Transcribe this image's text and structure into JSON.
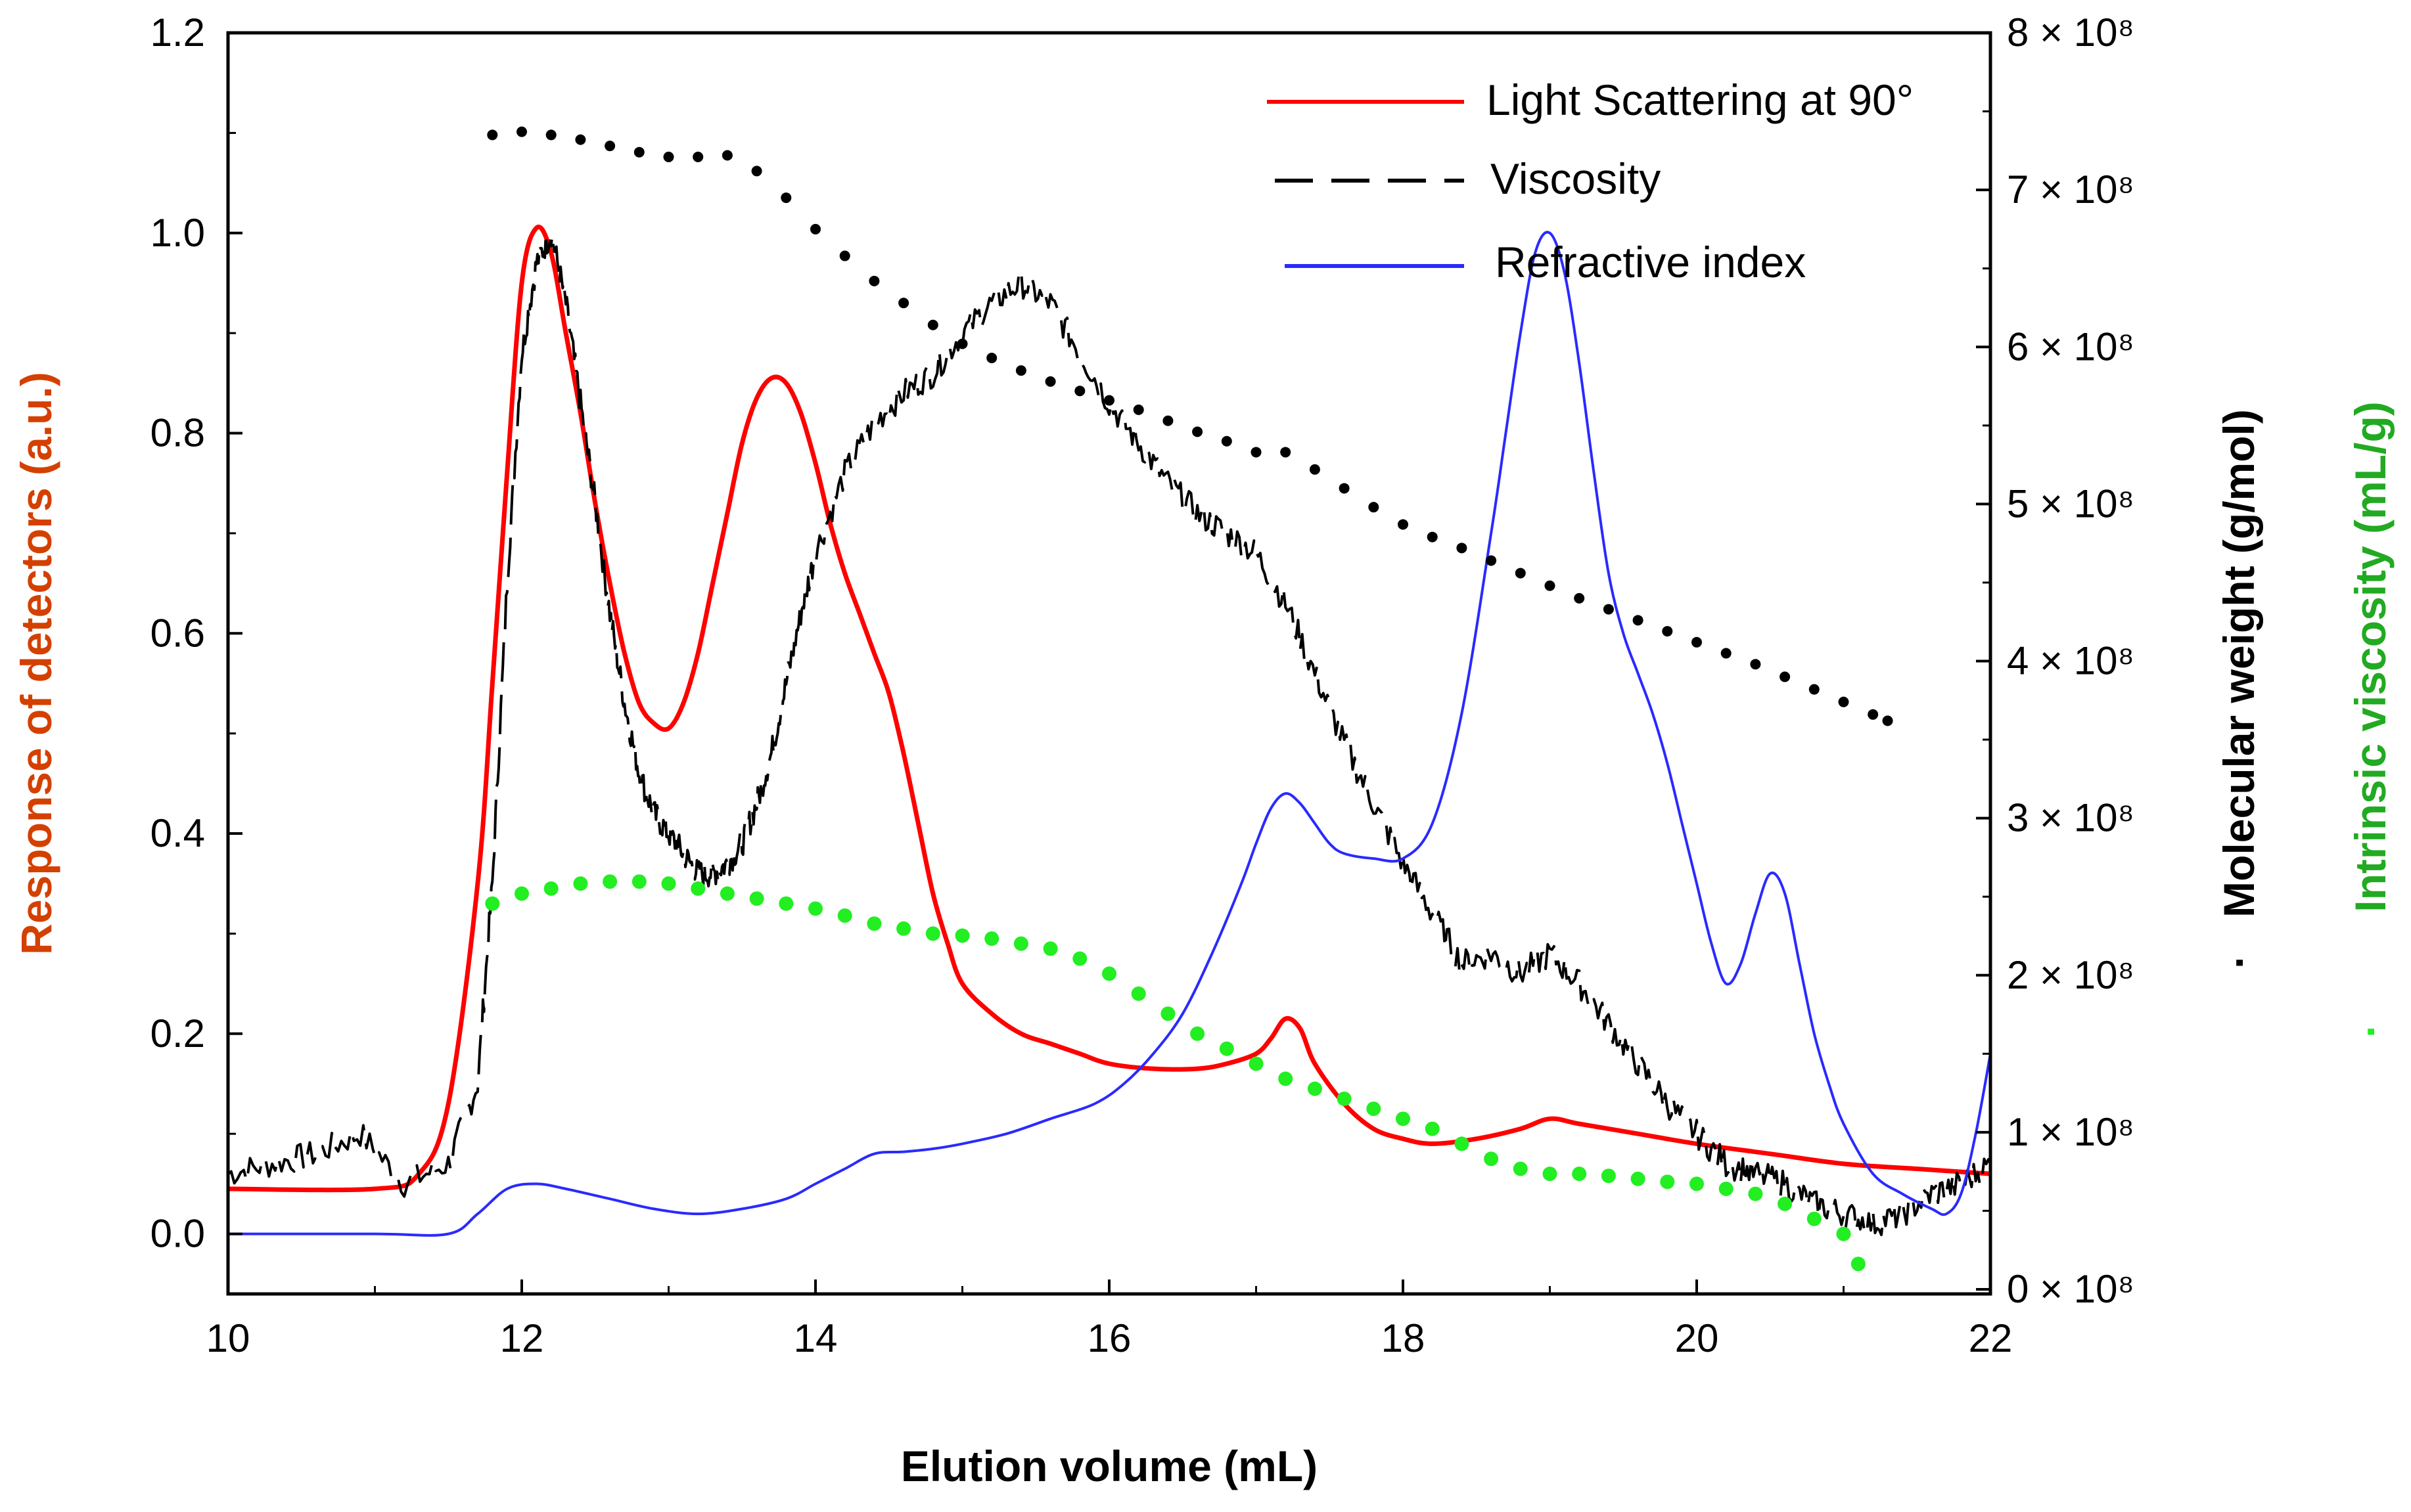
{
  "chart_data": {
    "type": "line",
    "title": "",
    "xlabel": "Elution volume (mL)",
    "ylabel_left": "Response of detectors (a.u.)",
    "ylabel_right_1": "Molecular weight (g/mol)",
    "ylabel_right_1_marker": "·",
    "ylabel_right_2": "Intrinsic viscosity (mL/g)",
    "ylabel_right_2_marker": "·",
    "xlim": [
      10,
      22
    ],
    "ylim_left": [
      -0.06,
      1.2
    ],
    "ylim_right": [
      0,
      8
    ],
    "x_ticks": [
      "10",
      "12",
      "14",
      "16",
      "18",
      "20",
      "22"
    ],
    "x_tick_values": [
      10,
      12,
      14,
      16,
      18,
      20,
      22
    ],
    "y_left_ticks": [
      "0.0",
      "0.2",
      "0.4",
      "0.6",
      "0.8",
      "1.0",
      "1.2"
    ],
    "y_left_tick_values": [
      0,
      0.2,
      0.4,
      0.6,
      0.8,
      1.0,
      1.2
    ],
    "y_right_ticks": [
      "0 × 10⁸",
      "1 × 10⁸",
      "2 × 10⁸",
      "3 × 10⁸",
      "4 × 10⁸",
      "5 × 10⁸",
      "6 × 10⁸",
      "7 × 10⁸",
      "8 × 10⁸"
    ],
    "y_right_tick_values": [
      0,
      1,
      2,
      3,
      4,
      5,
      6,
      7,
      8
    ],
    "legend_position": "top-right",
    "colors": {
      "light_scattering": "#ff0000",
      "viscosity": "#000000",
      "refractive_index": "#2a2aff",
      "molecular_weight": "#000000",
      "intrinsic_viscosity": "#22ee22"
    },
    "legend": [
      {
        "label": "Light Scattering at 90°",
        "style": "solid",
        "color": "#ff0000"
      },
      {
        "label": "Viscosity",
        "style": "dashed",
        "color": "#000000"
      },
      {
        "label": "Refractive index",
        "style": "solid",
        "color": "#2a2aff"
      }
    ],
    "series": [
      {
        "name": "Light Scattering at 90°",
        "axis": "left",
        "style": "solid",
        "x": [
          10.0,
          11.0,
          11.3,
          11.5,
          11.7,
          11.8,
          11.9,
          12.0,
          12.1,
          12.2,
          12.3,
          12.4,
          12.5,
          12.6,
          12.7,
          12.8,
          12.9,
          13.0,
          13.1,
          13.2,
          13.3,
          13.4,
          13.5,
          13.6,
          13.7,
          13.8,
          13.9,
          14.0,
          14.1,
          14.2,
          14.3,
          14.4,
          14.5,
          14.6,
          14.7,
          14.8,
          14.9,
          15.0,
          15.2,
          15.4,
          15.6,
          15.8,
          16.0,
          16.3,
          16.6,
          16.8,
          17.0,
          17.1,
          17.2,
          17.3,
          17.4,
          17.6,
          17.8,
          18.0,
          18.2,
          18.5,
          18.8,
          19.0,
          19.2,
          19.6,
          20.0,
          20.5,
          21.0,
          21.5,
          22.0
        ],
        "y": [
          0.045,
          0.045,
          0.06,
          0.13,
          0.35,
          0.55,
          0.76,
          0.95,
          1.005,
          0.98,
          0.9,
          0.82,
          0.73,
          0.65,
          0.58,
          0.53,
          0.51,
          0.505,
          0.53,
          0.58,
          0.65,
          0.72,
          0.79,
          0.835,
          0.855,
          0.85,
          0.82,
          0.77,
          0.71,
          0.66,
          0.62,
          0.58,
          0.54,
          0.48,
          0.41,
          0.34,
          0.29,
          0.25,
          0.22,
          0.2,
          0.19,
          0.18,
          0.17,
          0.165,
          0.165,
          0.17,
          0.18,
          0.195,
          0.215,
          0.205,
          0.17,
          0.13,
          0.105,
          0.095,
          0.09,
          0.095,
          0.105,
          0.115,
          0.11,
          0.1,
          0.09,
          0.08,
          0.07,
          0.065,
          0.06
        ]
      },
      {
        "name": "Viscosity",
        "axis": "left",
        "style": "dashed",
        "x": [
          10.0,
          10.3,
          10.6,
          10.9,
          11.2,
          11.5,
          11.7,
          11.8,
          11.9,
          12.0,
          12.1,
          12.2,
          12.3,
          12.4,
          12.5,
          12.6,
          12.7,
          12.8,
          12.9,
          13.0,
          13.1,
          13.2,
          13.3,
          13.4,
          13.5,
          13.6,
          13.7,
          13.8,
          13.9,
          14.0,
          14.2,
          14.4,
          14.6,
          14.8,
          15.0,
          15.2,
          15.4,
          15.6,
          15.8,
          16.0,
          16.2,
          16.4,
          16.6,
          16.8,
          17.0,
          17.2,
          17.4,
          17.6,
          17.8,
          18.0,
          18.2,
          18.4,
          18.6,
          18.8,
          19.0,
          19.2,
          19.4,
          19.6,
          19.8,
          20.0,
          20.2,
          20.4,
          20.6,
          20.8,
          21.0,
          21.2,
          21.4,
          21.6,
          21.8,
          22.0
        ],
        "y": [
          0.06,
          0.07,
          0.08,
          0.1,
          0.05,
          0.07,
          0.15,
          0.35,
          0.65,
          0.88,
          0.97,
          1.0,
          0.93,
          0.83,
          0.73,
          0.62,
          0.53,
          0.46,
          0.42,
          0.4,
          0.38,
          0.36,
          0.36,
          0.37,
          0.39,
          0.43,
          0.48,
          0.55,
          0.62,
          0.68,
          0.76,
          0.81,
          0.84,
          0.86,
          0.9,
          0.93,
          0.95,
          0.93,
          0.88,
          0.83,
          0.79,
          0.75,
          0.72,
          0.7,
          0.68,
          0.63,
          0.56,
          0.49,
          0.43,
          0.37,
          0.32,
          0.27,
          0.28,
          0.26,
          0.28,
          0.25,
          0.21,
          0.17,
          0.13,
          0.1,
          0.07,
          0.06,
          0.05,
          0.03,
          0.02,
          0.01,
          0.02,
          0.04,
          0.05,
          0.07
        ]
      },
      {
        "name": "Refractive index",
        "axis": "left",
        "style": "solid",
        "x": [
          10.0,
          11.0,
          11.5,
          11.7,
          11.9,
          12.1,
          12.3,
          12.6,
          12.9,
          13.2,
          13.5,
          13.8,
          14.0,
          14.2,
          14.4,
          14.6,
          14.8,
          15.0,
          15.3,
          15.6,
          15.9,
          16.1,
          16.3,
          16.5,
          16.7,
          16.9,
          17.0,
          17.1,
          17.2,
          17.3,
          17.4,
          17.5,
          17.6,
          17.8,
          18.0,
          18.2,
          18.4,
          18.6,
          18.7,
          18.8,
          18.9,
          19.0,
          19.1,
          19.2,
          19.3,
          19.4,
          19.5,
          19.6,
          19.7,
          19.8,
          19.9,
          20.0,
          20.1,
          20.2,
          20.3,
          20.4,
          20.5,
          20.6,
          20.7,
          20.8,
          20.9,
          21.0,
          21.2,
          21.4,
          21.6,
          21.7,
          21.8,
          21.9,
          22.0
        ],
        "y": [
          0.0,
          0.0,
          0.0,
          0.02,
          0.045,
          0.05,
          0.045,
          0.035,
          0.025,
          0.02,
          0.025,
          0.035,
          0.05,
          0.065,
          0.08,
          0.082,
          0.085,
          0.09,
          0.1,
          0.115,
          0.13,
          0.15,
          0.18,
          0.22,
          0.28,
          0.35,
          0.39,
          0.425,
          0.44,
          0.43,
          0.41,
          0.39,
          0.38,
          0.375,
          0.375,
          0.41,
          0.52,
          0.7,
          0.8,
          0.9,
          0.98,
          1.0,
          0.96,
          0.87,
          0.76,
          0.66,
          0.6,
          0.56,
          0.52,
          0.47,
          0.41,
          0.35,
          0.29,
          0.25,
          0.27,
          0.32,
          0.36,
          0.34,
          0.27,
          0.2,
          0.15,
          0.11,
          0.06,
          0.04,
          0.025,
          0.02,
          0.04,
          0.1,
          0.18
        ]
      },
      {
        "name": "Molecular weight",
        "axis": "right",
        "style": "dotted",
        "x": [
          11.8,
          12.0,
          12.2,
          12.4,
          12.6,
          12.8,
          13.0,
          13.2,
          13.4,
          13.6,
          13.8,
          14.0,
          14.2,
          14.4,
          14.6,
          14.8,
          15.0,
          15.2,
          15.4,
          15.6,
          15.8,
          16.0,
          16.2,
          16.4,
          16.6,
          16.8,
          17.0,
          17.2,
          17.4,
          17.6,
          17.8,
          18.0,
          18.2,
          18.4,
          18.6,
          18.8,
          19.0,
          19.2,
          19.4,
          19.6,
          19.8,
          20.0,
          20.2,
          20.4,
          20.6,
          20.8,
          21.0,
          21.2,
          21.3
        ],
        "y": [
          7.35,
          7.37,
          7.35,
          7.32,
          7.28,
          7.24,
          7.21,
          7.21,
          7.22,
          7.12,
          6.95,
          6.75,
          6.58,
          6.42,
          6.28,
          6.14,
          6.02,
          5.93,
          5.85,
          5.78,
          5.72,
          5.66,
          5.6,
          5.53,
          5.46,
          5.4,
          5.33,
          5.33,
          5.22,
          5.1,
          4.98,
          4.87,
          4.79,
          4.72,
          4.64,
          4.56,
          4.48,
          4.4,
          4.33,
          4.26,
          4.19,
          4.12,
          4.05,
          3.98,
          3.9,
          3.82,
          3.74,
          3.66,
          3.62
        ]
      },
      {
        "name": "Intrinsic viscosity",
        "axis": "left",
        "style": "dotted",
        "x": [
          11.8,
          12.0,
          12.2,
          12.4,
          12.6,
          12.8,
          13.0,
          13.2,
          13.4,
          13.6,
          13.8,
          14.0,
          14.2,
          14.4,
          14.6,
          14.8,
          15.0,
          15.2,
          15.4,
          15.6,
          15.8,
          16.0,
          16.2,
          16.4,
          16.6,
          16.8,
          17.0,
          17.2,
          17.4,
          17.6,
          17.8,
          18.0,
          18.2,
          18.4,
          18.6,
          18.8,
          19.0,
          19.2,
          19.4,
          19.6,
          19.8,
          20.0,
          20.2,
          20.4,
          20.6,
          20.8,
          21.0,
          21.1
        ],
        "y": [
          0.33,
          0.34,
          0.345,
          0.35,
          0.352,
          0.352,
          0.35,
          0.345,
          0.34,
          0.335,
          0.33,
          0.325,
          0.318,
          0.31,
          0.305,
          0.3,
          0.298,
          0.295,
          0.29,
          0.285,
          0.275,
          0.26,
          0.24,
          0.22,
          0.2,
          0.185,
          0.17,
          0.155,
          0.145,
          0.135,
          0.125,
          0.115,
          0.105,
          0.09,
          0.075,
          0.065,
          0.06,
          0.06,
          0.058,
          0.055,
          0.052,
          0.05,
          0.045,
          0.04,
          0.03,
          0.015,
          0.0,
          -0.03
        ]
      }
    ]
  }
}
